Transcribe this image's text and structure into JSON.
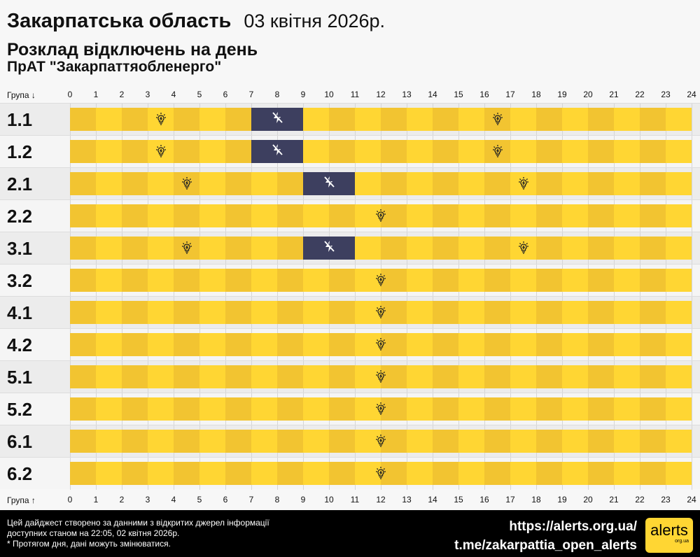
{
  "header": {
    "region": "Закарпатська область",
    "date": "03 квітня 2026р.",
    "subtitle": "Розклад відключень на день",
    "company": "ПрАТ \"Закарпаттяобленерго\""
  },
  "axis": {
    "top_label": "Група ↓",
    "bottom_label": "Група ↑",
    "hours": [
      "0",
      "1",
      "2",
      "3",
      "4",
      "5",
      "6",
      "7",
      "8",
      "9",
      "10",
      "11",
      "12",
      "13",
      "14",
      "15",
      "16",
      "17",
      "18",
      "19",
      "20",
      "21",
      "22",
      "23",
      "24"
    ]
  },
  "colors": {
    "on_dark": "#f2c431",
    "on_light": "#ffd633",
    "off": "#3d3f5f"
  },
  "groups": [
    {
      "label": "1.1",
      "outages": [
        [
          7,
          9
        ]
      ]
    },
    {
      "label": "1.2",
      "outages": [
        [
          7,
          9
        ]
      ]
    },
    {
      "label": "2.1",
      "outages": [
        [
          9,
          11
        ]
      ]
    },
    {
      "label": "2.2",
      "outages": []
    },
    {
      "label": "3.1",
      "outages": [
        [
          9,
          11
        ]
      ]
    },
    {
      "label": "3.2",
      "outages": []
    },
    {
      "label": "4.1",
      "outages": []
    },
    {
      "label": "4.2",
      "outages": []
    },
    {
      "label": "5.1",
      "outages": []
    },
    {
      "label": "5.2",
      "outages": []
    },
    {
      "label": "6.1",
      "outages": []
    },
    {
      "label": "6.2",
      "outages": []
    }
  ],
  "footer": {
    "note1": "Цей дайджест створено за данними з відкритих джерел інформації",
    "note2": "доступних станом на 22:05, 02 квітня 2026р.",
    "note3": "* Протягом дня, дані можуть змінюватися.",
    "site": "https://alerts.org.ua/",
    "telegram": "t.me/zakarpattia_open_alerts",
    "logo": "alerts",
    "logo_sub": "org.ua"
  }
}
